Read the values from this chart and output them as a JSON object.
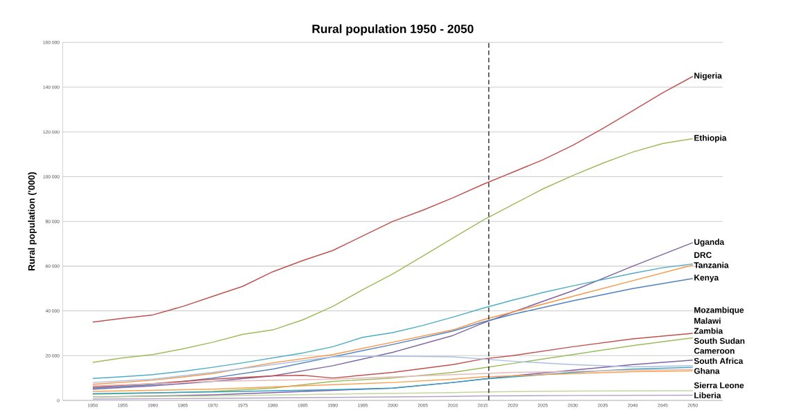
{
  "chart_data": {
    "type": "line",
    "title": "Rural population 1950 - 2050",
    "ylabel": "Rural population ('000)",
    "xlim": [
      1945,
      2055
    ],
    "xticks": [
      1950,
      1955,
      1960,
      1965,
      1970,
      1975,
      1980,
      1985,
      1990,
      1995,
      2000,
      2005,
      2010,
      2015,
      2020,
      2025,
      2030,
      2035,
      2040,
      2045,
      2050
    ],
    "ylim": [
      0,
      160000
    ],
    "yticks": [
      {
        "value": 0,
        "label": "0"
      },
      {
        "value": 20000,
        "label": "20 000"
      },
      {
        "value": 40000,
        "label": "40 000"
      },
      {
        "value": 60000,
        "label": "60 000"
      },
      {
        "value": 80000,
        "label": "80 000"
      },
      {
        "value": 100000,
        "label": "100 000"
      },
      {
        "value": 120000,
        "label": "120 000"
      },
      {
        "value": 140000,
        "label": "140 000"
      },
      {
        "value": 160000,
        "label": "160 000"
      }
    ],
    "grid": "y",
    "marker": "none",
    "line_style": "solid",
    "ref_lines": [
      {
        "axis": "x",
        "value": 2016,
        "color": "#000000",
        "line_style": "dashed"
      }
    ],
    "series": [
      {
        "name": "Nigeria",
        "color": "#c0504d",
        "x": [
          1950,
          1955,
          1960,
          1965,
          1970,
          1975,
          1980,
          1985,
          1990,
          1995,
          2000,
          2005,
          2010,
          2015,
          2020,
          2025,
          2030,
          2035,
          2040,
          2045,
          2050
        ],
        "values": [
          35000,
          36700,
          38200,
          42000,
          46500,
          51000,
          57500,
          62500,
          67000,
          73500,
          80000,
          85000,
          90500,
          96500,
          102000,
          107500,
          114000,
          121500,
          129500,
          137500,
          144800
        ]
      },
      {
        "name": "Ethiopia",
        "color": "#9bbb59",
        "x": [
          1950,
          1955,
          1960,
          1965,
          1970,
          1975,
          1980,
          1985,
          1990,
          1995,
          2000,
          2005,
          2010,
          2015,
          2020,
          2025,
          2030,
          2035,
          2040,
          2045,
          2050
        ],
        "values": [
          17000,
          19000,
          20500,
          23000,
          26000,
          29500,
          31500,
          36000,
          42000,
          49500,
          56500,
          64500,
          72500,
          80500,
          87500,
          94500,
          100500,
          106000,
          111000,
          114800,
          117000
        ]
      },
      {
        "name": "Uganda",
        "color": "#8064a2",
        "x": [
          1950,
          1960,
          1970,
          1980,
          1990,
          2000,
          2010,
          2015,
          2020,
          2030,
          2040,
          2050
        ],
        "values": [
          5000,
          6500,
          8500,
          11000,
          15500,
          21500,
          29000,
          34500,
          39500,
          49000,
          60000,
          70500
        ]
      },
      {
        "name": "DRC",
        "color": "#4bacc6",
        "x": [
          1950,
          1955,
          1960,
          1965,
          1970,
          1975,
          1980,
          1985,
          1990,
          1995,
          2000,
          2005,
          2010,
          2015,
          2020,
          2025,
          2030,
          2035,
          2040,
          2045,
          2050
        ],
        "values": [
          9800,
          10600,
          11500,
          13000,
          14800,
          16800,
          19000,
          21200,
          24000,
          28200,
          30300,
          33500,
          37200,
          41200,
          44800,
          48200,
          51200,
          54000,
          56800,
          59300,
          61000
        ]
      },
      {
        "name": "Tanzania",
        "color": "#f79646",
        "x": [
          1950,
          1960,
          1970,
          1980,
          1990,
          2000,
          2010,
          2015,
          2020,
          2030,
          2040,
          2050
        ],
        "values": [
          7200,
          9000,
          12000,
          16800,
          20500,
          26000,
          31500,
          36000,
          39500,
          46500,
          53500,
          60500
        ]
      },
      {
        "name": "Kenya",
        "color": "#4f81bd",
        "x": [
          1950,
          1960,
          1970,
          1980,
          1990,
          2000,
          2010,
          2015,
          2020,
          2030,
          2040,
          2050
        ],
        "values": [
          5500,
          7000,
          10000,
          14000,
          19500,
          25000,
          31000,
          35000,
          38500,
          44500,
          50000,
          54500
        ]
      },
      {
        "name": "Mozambique",
        "color": "#c0504d",
        "x": [
          1950,
          1960,
          1970,
          1980,
          1985,
          1990,
          2000,
          2010,
          2015,
          2020,
          2030,
          2040,
          2050
        ],
        "values": [
          6000,
          7500,
          9500,
          11000,
          11200,
          10000,
          12500,
          16000,
          18500,
          20000,
          24000,
          27500,
          30000
        ]
      },
      {
        "name": "Malawi",
        "color": "#9bbb59",
        "x": [
          1950,
          1960,
          1970,
          1980,
          1990,
          2000,
          2010,
          2015,
          2020,
          2030,
          2040,
          2050
        ],
        "values": [
          2800,
          3300,
          4000,
          5500,
          8500,
          10000,
          12500,
          14500,
          16500,
          20500,
          24500,
          28000
        ]
      },
      {
        "name": "Zambia",
        "color": "#7f5fa8",
        "x": [
          1950,
          1970,
          1990,
          2000,
          2010,
          2015,
          2020,
          2030,
          2040,
          2050
        ],
        "values": [
          1500,
          2500,
          4500,
          5500,
          8000,
          9500,
          11000,
          13500,
          16000,
          18000
        ]
      },
      {
        "name": "South Sudan",
        "color": "#a9bfe0",
        "x": [
          1950,
          1960,
          1970,
          1980,
          1990,
          2000,
          2010,
          2015,
          2020,
          2030,
          2040,
          2050
        ],
        "values": [
          8000,
          9500,
          12500,
          16000,
          19500,
          19800,
          19500,
          18500,
          17500,
          16000,
          15000,
          15500
        ]
      },
      {
        "name": "Cameroon",
        "color": "#31a2c2",
        "x": [
          1950,
          1970,
          1990,
          2000,
          2010,
          2015,
          2020,
          2030,
          2040,
          2050
        ],
        "values": [
          3000,
          3800,
          4800,
          5500,
          8000,
          9500,
          10500,
          12500,
          14000,
          14800
        ]
      },
      {
        "name": "South Africa",
        "color": "#e6b9b8",
        "x": [
          1950,
          1970,
          1990,
          2000,
          2010,
          2015,
          2020,
          2030,
          2040,
          2050
        ],
        "values": [
          6500,
          8500,
          9500,
          10500,
          11500,
          12000,
          12500,
          13000,
          13500,
          13800
        ]
      },
      {
        "name": "Ghana",
        "color": "#f9a04e",
        "x": [
          1950,
          1970,
          1990,
          2000,
          2010,
          2015,
          2020,
          2030,
          2040,
          2050
        ],
        "values": [
          4000,
          5000,
          7000,
          8000,
          9500,
          10500,
          11000,
          12000,
          12800,
          13200
        ]
      },
      {
        "name": "Sierra Leone",
        "color": "#c3d69b",
        "x": [
          1950,
          1970,
          1990,
          2010,
          2015,
          2030,
          2050
        ],
        "values": [
          1500,
          2000,
          2800,
          3500,
          3800,
          4200,
          4300
        ]
      },
      {
        "name": "Liberia",
        "color": "#b3a2c7",
        "x": [
          1950,
          1970,
          1990,
          2010,
          2015,
          2030,
          2050
        ],
        "values": [
          600,
          900,
          1300,
          1800,
          2000,
          2200,
          2300
        ]
      }
    ]
  }
}
